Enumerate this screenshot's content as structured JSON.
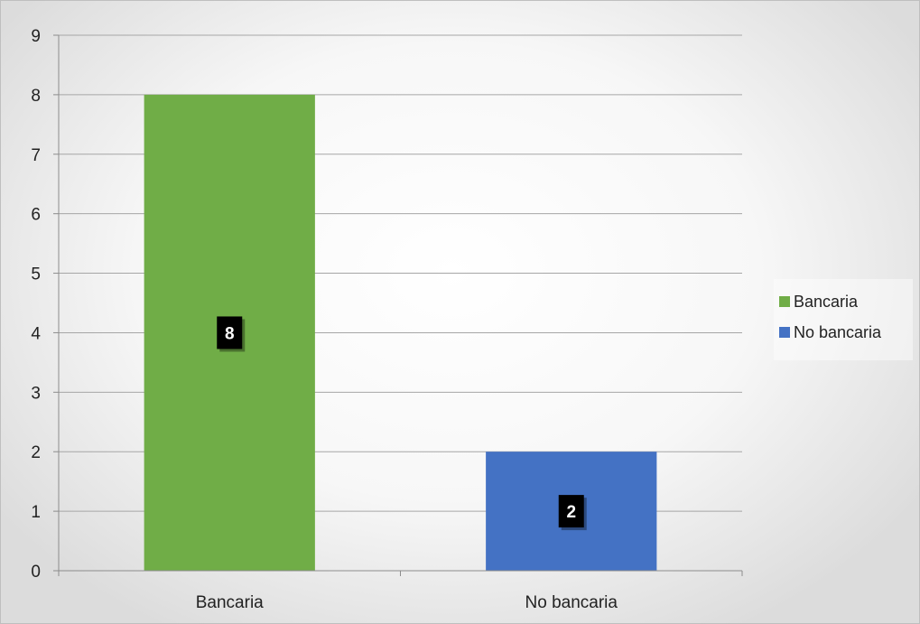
{
  "chart_data": {
    "type": "bar",
    "categories": [
      "Bancaria",
      "No bancaria"
    ],
    "values": [
      8,
      2
    ],
    "colors": [
      "#70ad47",
      "#4472c4"
    ],
    "data_labels": [
      "8",
      "2"
    ],
    "ylim": [
      0,
      9
    ],
    "yticks": [
      "0",
      "1",
      "2",
      "3",
      "4",
      "5",
      "6",
      "7",
      "8",
      "9"
    ],
    "grid": true,
    "legend": {
      "position": "right",
      "entries": [
        {
          "label": "Bancaria",
          "color": "#70ad47"
        },
        {
          "label": "No bancaria",
          "color": "#4472c4"
        }
      ]
    }
  }
}
